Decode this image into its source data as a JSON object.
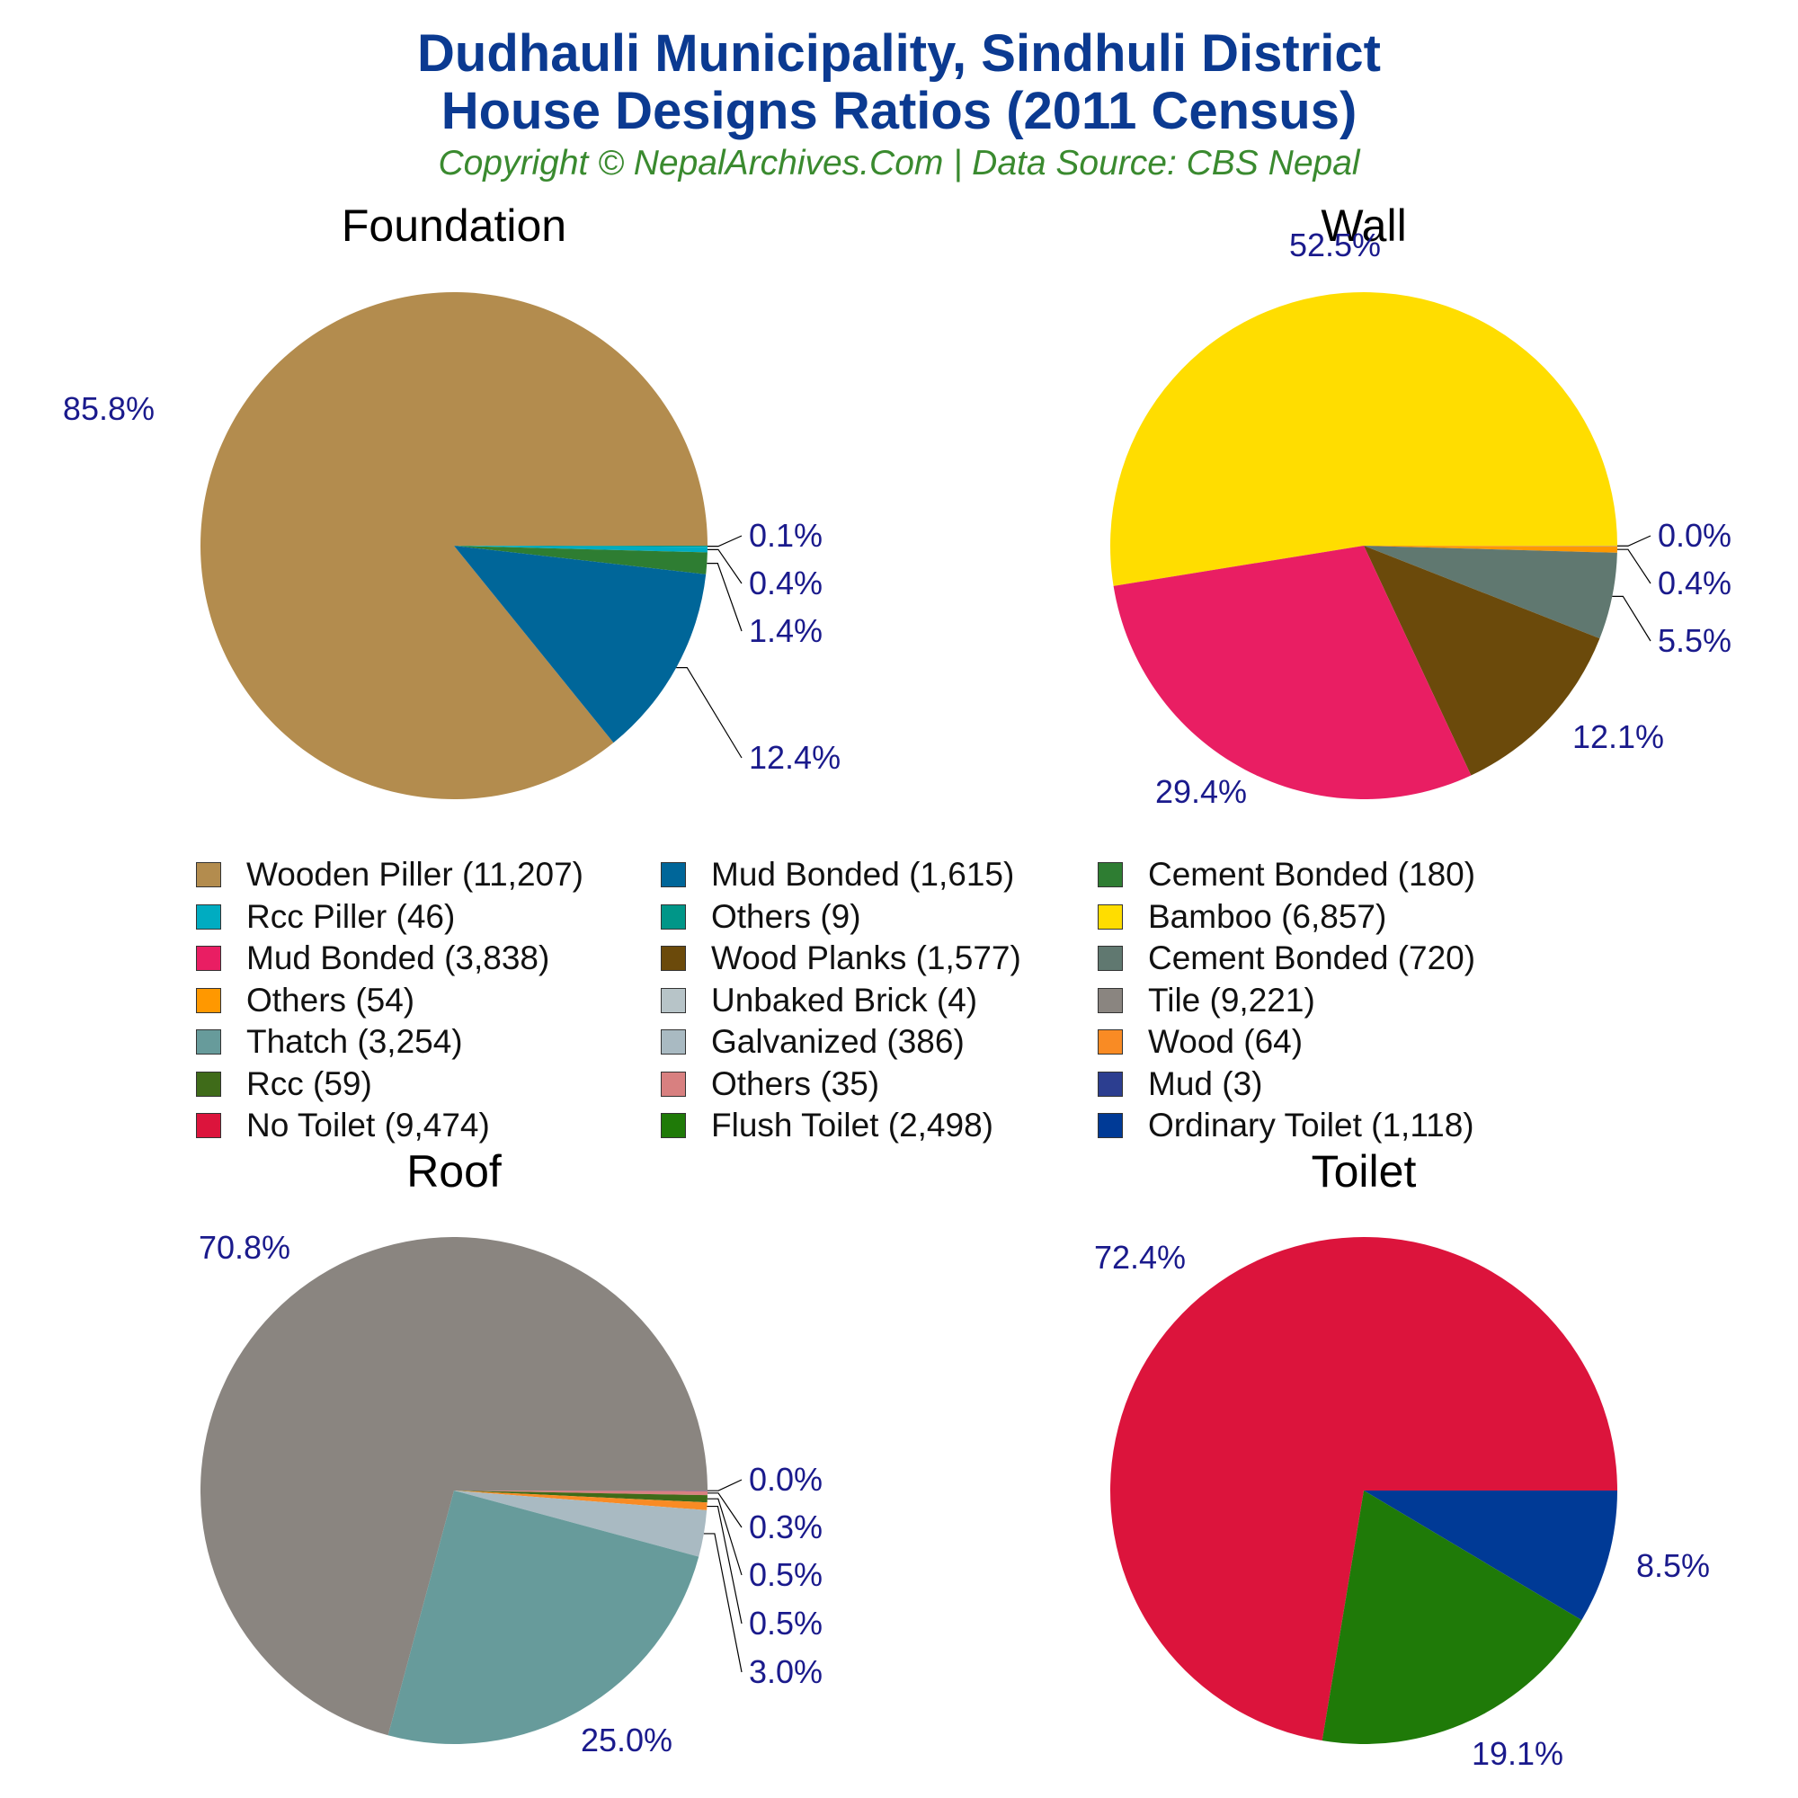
{
  "header": {
    "title_line1": "Dudhauli Municipality, Sindhuli District",
    "title_line2": "House Designs Ratios (2011 Census)",
    "copyright": "Copyright © NepalArchives.Com | Data Source: CBS Nepal"
  },
  "legend": {
    "entries": [
      {
        "label": "Wooden Piller (11,207)",
        "color": "#b38c4e"
      },
      {
        "label": "Mud Bonded (1,615)",
        "color": "#006699"
      },
      {
        "label": "Cement Bonded (180)",
        "color": "#2e7d32"
      },
      {
        "label": "Rcc Piller (46)",
        "color": "#00acc1"
      },
      {
        "label": "Others (9)",
        "color": "#009688"
      },
      {
        "label": "Bamboo (6,857)",
        "color": "#ffdd00"
      },
      {
        "label": "Mud Bonded (3,838)",
        "color": "#e91e63"
      },
      {
        "label": "Wood Planks (1,577)",
        "color": "#6b4a0b"
      },
      {
        "label": "Cement Bonded (720)",
        "color": "#607870"
      },
      {
        "label": "Others (54)",
        "color": "#ff9800"
      },
      {
        "label": "Unbaked Brick (4)",
        "color": "#b7c4c8"
      },
      {
        "label": "Tile (9,221)",
        "color": "#8a8580"
      },
      {
        "label": "Thatch (3,254)",
        "color": "#679b9b"
      },
      {
        "label": "Galvanized (386)",
        "color": "#a9bac2"
      },
      {
        "label": "Wood (64)",
        "color": "#f98b24"
      },
      {
        "label": "Rcc (59)",
        "color": "#3f6b19"
      },
      {
        "label": "Others (35)",
        "color": "#d88080"
      },
      {
        "label": "Mud (3)",
        "color": "#2c3e90"
      },
      {
        "label": "No Toilet (9,474)",
        "color": "#dc143c"
      },
      {
        "label": "Flush Toilet (2,498)",
        "color": "#1f7a08"
      },
      {
        "label": "Ordinary Toilet (1,118)",
        "color": "#003a96"
      }
    ]
  },
  "chart_data": [
    {
      "type": "pie",
      "title": "Foundation",
      "slices": [
        {
          "name": "Wooden Piller",
          "value": 11207,
          "percent": 85.8,
          "color": "#b38c4e",
          "label": "85.8%"
        },
        {
          "name": "Mud Bonded",
          "value": 1615,
          "percent": 12.4,
          "color": "#006699",
          "label": "12.4%"
        },
        {
          "name": "Cement Bonded",
          "value": 180,
          "percent": 1.4,
          "color": "#2e7d32",
          "label": "1.4%"
        },
        {
          "name": "Rcc Piller",
          "value": 46,
          "percent": 0.4,
          "color": "#00acc1",
          "label": "0.4%"
        },
        {
          "name": "Others",
          "value": 9,
          "percent": 0.1,
          "color": "#009688",
          "label": "0.1%"
        }
      ]
    },
    {
      "type": "pie",
      "title": "Wall",
      "slices": [
        {
          "name": "Bamboo",
          "value": 6857,
          "percent": 52.5,
          "color": "#ffdd00",
          "label": "52.5%"
        },
        {
          "name": "Mud Bonded",
          "value": 3838,
          "percent": 29.4,
          "color": "#e91e63",
          "label": "29.4%"
        },
        {
          "name": "Wood Planks",
          "value": 1577,
          "percent": 12.1,
          "color": "#6b4a0b",
          "label": "12.1%"
        },
        {
          "name": "Cement Bonded",
          "value": 720,
          "percent": 5.5,
          "color": "#607870",
          "label": "5.5%"
        },
        {
          "name": "Others",
          "value": 54,
          "percent": 0.4,
          "color": "#ff9800",
          "label": "0.4%"
        },
        {
          "name": "Unbaked Brick",
          "value": 4,
          "percent": 0.0,
          "color": "#b7c4c8",
          "label": "0.0%"
        }
      ]
    },
    {
      "type": "pie",
      "title": "Roof",
      "slices": [
        {
          "name": "Tile",
          "value": 9221,
          "percent": 70.8,
          "color": "#8a8580",
          "label": "70.8%"
        },
        {
          "name": "Thatch",
          "value": 3254,
          "percent": 25.0,
          "color": "#679b9b",
          "label": "25.0%"
        },
        {
          "name": "Galvanized",
          "value": 386,
          "percent": 3.0,
          "color": "#a9bac2",
          "label": "3.0%"
        },
        {
          "name": "Wood",
          "value": 64,
          "percent": 0.5,
          "color": "#f98b24",
          "label": "0.5%"
        },
        {
          "name": "Rcc",
          "value": 59,
          "percent": 0.5,
          "color": "#3f6b19",
          "label": "0.5%"
        },
        {
          "name": "Others",
          "value": 35,
          "percent": 0.3,
          "color": "#d88080",
          "label": "0.3%"
        },
        {
          "name": "Mud",
          "value": 3,
          "percent": 0.0,
          "color": "#2c3e90",
          "label": "0.0%"
        }
      ]
    },
    {
      "type": "pie",
      "title": "Toilet",
      "slices": [
        {
          "name": "No Toilet",
          "value": 9474,
          "percent": 72.4,
          "color": "#dc143c",
          "label": "72.4%"
        },
        {
          "name": "Flush Toilet",
          "value": 2498,
          "percent": 19.1,
          "color": "#1f7a08",
          "label": "19.1%"
        },
        {
          "name": "Ordinary Toilet",
          "value": 1118,
          "percent": 8.5,
          "color": "#003a96",
          "label": "8.5%"
        }
      ]
    }
  ]
}
